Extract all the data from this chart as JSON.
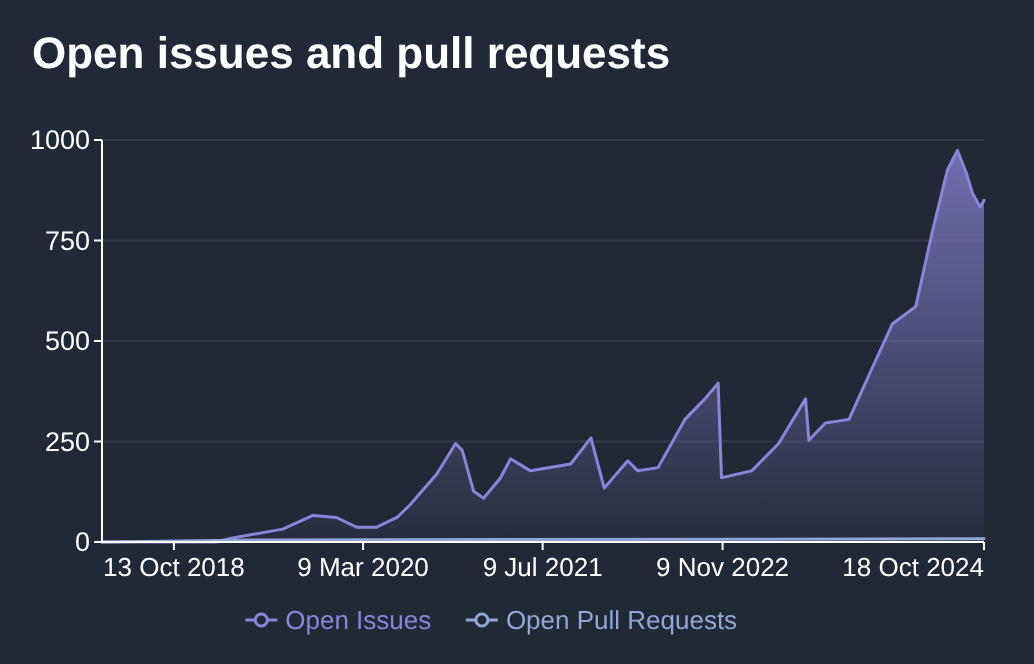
{
  "chart_data": {
    "type": "area",
    "title": "Open issues and pull requests",
    "grid": "y",
    "legend": "bottom",
    "xlim": [
      "2018-04-01",
      "2024-10-18"
    ],
    "xticks": [
      {
        "value": "2018-10-13",
        "label": "13 Oct 2018"
      },
      {
        "value": "2020-03-09",
        "label": "9 Mar 2020"
      },
      {
        "value": "2021-07-09",
        "label": "9 Jul 2021"
      },
      {
        "value": "2022-11-09",
        "label": "9 Nov 2022"
      },
      {
        "value": "2024-10-18",
        "label": "18 Oct 2024"
      }
    ],
    "ylim": [
      0,
      1000
    ],
    "yticks": [
      0,
      250,
      500,
      750,
      1000
    ],
    "series": [
      {
        "name": "Open Issues",
        "color": "#8b84d7",
        "x": [
          "2018-04-01",
          "2019-02-04",
          "2019-03-21",
          "2019-08-04",
          "2019-10-25",
          "2019-12-28",
          "2020-02-20",
          "2020-04-15",
          "2020-06-09",
          "2020-07-14",
          "2020-09-25",
          "2020-11-15",
          "2020-12-03",
          "2021-01-03",
          "2021-01-30",
          "2021-03-17",
          "2021-04-13",
          "2021-06-06",
          "2021-09-23",
          "2021-11-17",
          "2021-12-23",
          "2022-02-25",
          "2022-03-24",
          "2022-05-18",
          "2022-07-30",
          "2022-09-22",
          "2022-10-28",
          "2022-11-06",
          "2023-01-27",
          "2023-04-10",
          "2023-06-22",
          "2023-07-01",
          "2023-08-15",
          "2023-10-18",
          "2023-12-11",
          "2024-02-13",
          "2024-04-16",
          "2024-05-31",
          "2024-07-11",
          "2024-08-07",
          "2024-08-31",
          "2024-09-17",
          "2024-10-08",
          "2024-10-18"
        ],
        "values": [
          0,
          0,
          10,
          32,
          66,
          61,
          37,
          37,
          61,
          92,
          169,
          245,
          228,
          126,
          109,
          160,
          207,
          177,
          194,
          259,
          134,
          202,
          177,
          185,
          305,
          356,
          395,
          160,
          177,
          245,
          356,
          253,
          296,
          305,
          415,
          543,
          586,
          773,
          926,
          974,
          918,
          867,
          833,
          850
        ]
      },
      {
        "name": "Open Pull Requests",
        "type": "line",
        "color": "#8fa8d8",
        "x": [
          "2018-04-01",
          "2019-06-01",
          "2024-10-18"
        ],
        "values": [
          0,
          5,
          8
        ]
      }
    ]
  }
}
